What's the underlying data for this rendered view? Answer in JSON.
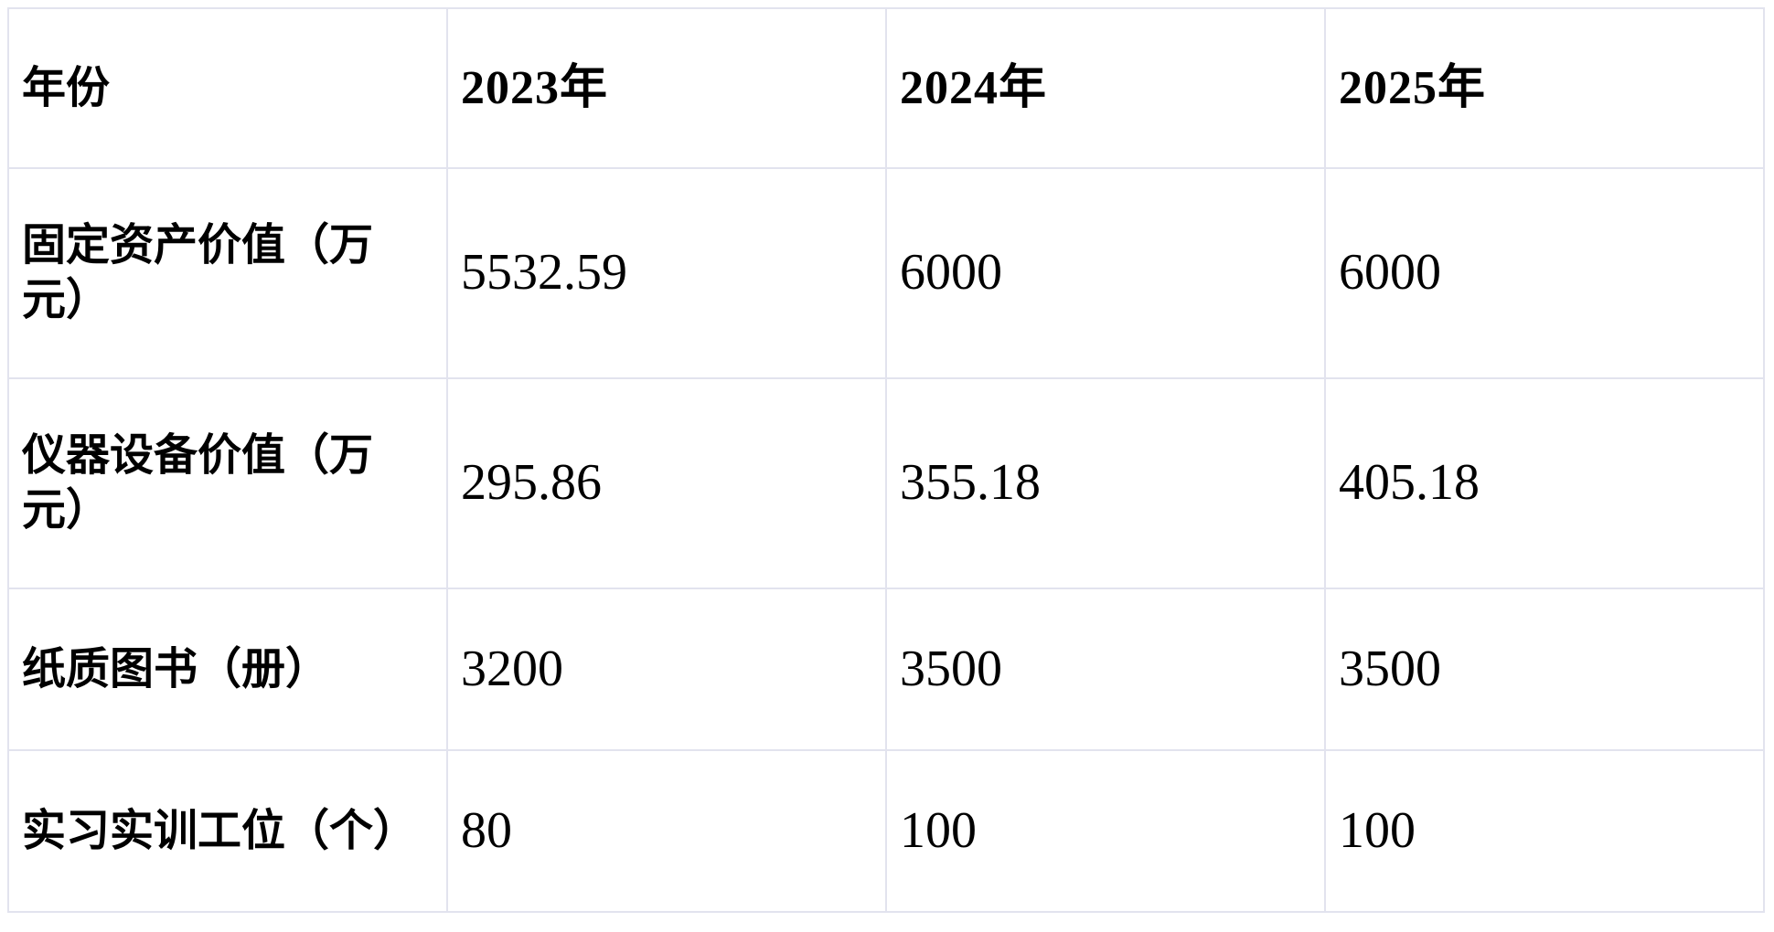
{
  "chart_data": {
    "type": "table",
    "title": "",
    "columns": [
      "年份",
      "2023年",
      "2024年",
      "2025年"
    ],
    "categories": [
      "2023年",
      "2024年",
      "2025年"
    ],
    "rows": [
      {
        "label": "固定资产价值（万元）",
        "values": [
          "5532.59",
          "6000",
          "6000"
        ]
      },
      {
        "label": "仪器设备价值（万元）",
        "values": [
          "295.86",
          "355.18",
          "405.18"
        ]
      },
      {
        "label": "纸质图书（册）",
        "values": [
          "3200",
          "3500",
          "3500"
        ]
      },
      {
        "label": "实习实训工位（个）",
        "values": [
          "80",
          "100",
          "100"
        ]
      }
    ],
    "series": [
      {
        "name": "固定资产价值（万元）",
        "values": [
          5532.59,
          6000,
          6000
        ]
      },
      {
        "name": "仪器设备价值（万元）",
        "values": [
          295.86,
          355.18,
          405.18
        ]
      },
      {
        "name": "纸质图书（册）",
        "values": [
          3200,
          3500,
          3500
        ]
      },
      {
        "name": "实习实训工位（个）",
        "values": [
          80,
          100,
          100
        ]
      }
    ],
    "layout": {
      "grid": "on",
      "header_row": true,
      "label_column": true
    }
  },
  "colors": {
    "background": "#ffffff",
    "text": "#000000",
    "border": "#e2e3ee"
  }
}
